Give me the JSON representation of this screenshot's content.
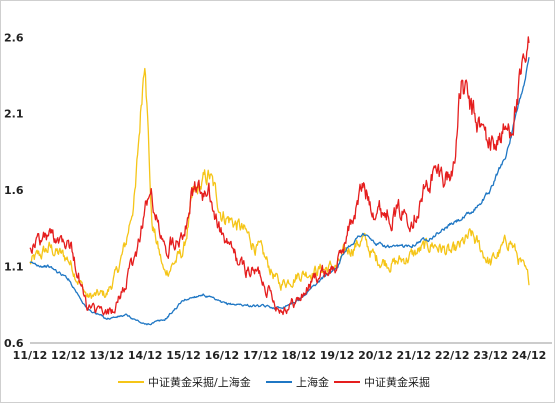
{
  "chart_data": {
    "type": "line",
    "title": "",
    "xlabel": "",
    "ylabel": "",
    "x_ticks": [
      "11/12",
      "12/12",
      "13/12",
      "14/12",
      "15/12",
      "16/12",
      "17/12",
      "18/12",
      "19/12",
      "20/12",
      "21/12",
      "22/12",
      "23/12",
      "24/12"
    ],
    "ylim": [
      0.6,
      2.7
    ],
    "y_ticks": [
      "0.6",
      "1.1",
      "1.6",
      "2.1",
      "2.6"
    ],
    "grid": false,
    "legend_position": "bottom",
    "series": [
      {
        "name": "中证黄金采掘/上海金",
        "color": "#F5C518",
        "axis": "left",
        "x": [
          "11/12",
          "12/06",
          "12/12",
          "13/06",
          "13/12",
          "14/03",
          "14/06",
          "14/09",
          "14/12",
          "15/02",
          "15/06",
          "15/12",
          "16/03",
          "16/08",
          "16/12",
          "17/06",
          "17/12",
          "18/06",
          "18/12",
          "19/06",
          "19/12",
          "20/03",
          "20/08",
          "20/12",
          "21/06",
          "21/12",
          "22/06",
          "22/12",
          "23/06",
          "23/12",
          "24/06",
          "24/12"
        ],
        "values": [
          1.12,
          1.22,
          1.15,
          0.9,
          0.92,
          1.05,
          1.25,
          1.6,
          2.55,
          1.4,
          1.05,
          1.2,
          1.55,
          1.7,
          1.45,
          1.35,
          1.2,
          0.98,
          1.05,
          1.08,
          1.1,
          1.2,
          1.28,
          1.15,
          1.12,
          1.18,
          1.25,
          1.18,
          1.3,
          1.12,
          1.28,
          1.0
        ]
      },
      {
        "name": "上海金",
        "color": "#1F77C4",
        "axis": "left",
        "x": [
          "11/12",
          "12/06",
          "12/12",
          "13/06",
          "13/12",
          "14/06",
          "14/12",
          "15/06",
          "15/12",
          "16/06",
          "16/12",
          "17/06",
          "17/12",
          "18/06",
          "18/12",
          "19/06",
          "19/12",
          "20/03",
          "20/08",
          "20/12",
          "21/06",
          "21/12",
          "22/06",
          "22/12",
          "23/06",
          "23/12",
          "24/06",
          "24/12"
        ],
        "values": [
          1.12,
          1.1,
          1.02,
          0.82,
          0.76,
          0.78,
          0.72,
          0.75,
          0.88,
          0.92,
          0.86,
          0.85,
          0.84,
          0.83,
          0.88,
          1.0,
          1.1,
          1.22,
          1.32,
          1.25,
          1.22,
          1.25,
          1.3,
          1.38,
          1.45,
          1.6,
          1.9,
          2.45
        ]
      },
      {
        "name": "中证黄金采掘",
        "color": "#E51E1E",
        "axis": "left",
        "x": [
          "11/12",
          "12/06",
          "12/12",
          "13/06",
          "13/12",
          "14/03",
          "14/06",
          "14/09",
          "14/12",
          "15/02",
          "15/06",
          "15/12",
          "16/03",
          "16/08",
          "16/12",
          "17/06",
          "17/12",
          "18/06",
          "18/12",
          "19/06",
          "19/12",
          "20/03",
          "20/08",
          "20/12",
          "21/06",
          "21/12",
          "22/06",
          "22/12",
          "23/03",
          "23/06",
          "23/12",
          "24/06",
          "24/12"
        ],
        "values": [
          1.25,
          1.3,
          1.3,
          0.82,
          0.78,
          0.85,
          1.0,
          1.15,
          1.5,
          1.55,
          1.2,
          1.35,
          1.6,
          1.55,
          1.3,
          1.1,
          1.05,
          0.82,
          0.88,
          1.05,
          1.1,
          1.3,
          1.62,
          1.48,
          1.45,
          1.45,
          1.7,
          1.7,
          2.3,
          2.1,
          1.9,
          2.0,
          2.5
        ]
      }
    ]
  }
}
